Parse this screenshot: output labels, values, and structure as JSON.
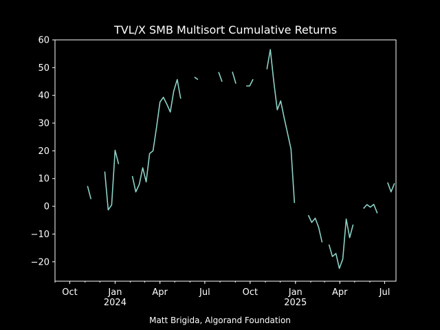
{
  "chart_data": {
    "type": "line",
    "title": "TVL/X SMB Multisort Cumulative Returns",
    "caption": "Matt Brigida, Algorand Foundation",
    "xlabel": "",
    "ylabel": "",
    "x_axis": {
      "type": "date",
      "range": [
        "2023-09-01",
        "2025-07-24"
      ],
      "ticks": [
        {
          "date": "2023-10-01",
          "label": "Oct",
          "year_label": ""
        },
        {
          "date": "2024-01-01",
          "label": "Jan",
          "year_label": "2024"
        },
        {
          "date": "2024-04-01",
          "label": "Apr",
          "year_label": ""
        },
        {
          "date": "2024-07-01",
          "label": "Jul",
          "year_label": ""
        },
        {
          "date": "2024-10-01",
          "label": "Oct",
          "year_label": ""
        },
        {
          "date": "2025-01-01",
          "label": "Jan",
          "year_label": "2025"
        },
        {
          "date": "2025-04-01",
          "label": "Apr",
          "year_label": ""
        },
        {
          "date": "2025-07-01",
          "label": "Jul",
          "year_label": ""
        }
      ]
    },
    "y_axis": {
      "range": [
        -27,
        60
      ],
      "ticks": [
        60,
        50,
        40,
        30,
        20,
        10,
        0,
        -10,
        -20
      ],
      "tick_labels": [
        "60",
        "50",
        "40",
        "30",
        "20",
        "10",
        "0",
        "−10",
        "−20"
      ]
    },
    "grid": false,
    "line_color": "#8dd3c7",
    "segments": [
      [
        [
          "2023-11-06",
          7.3
        ],
        [
          "2023-11-13",
          2.6
        ]
      ],
      [
        [
          "2023-12-11",
          12.5
        ],
        [
          "2023-12-18",
          -1.3
        ],
        [
          "2023-12-25",
          0.5
        ],
        [
          "2024-01-01",
          20.2
        ],
        [
          "2024-01-08",
          15.2
        ]
      ],
      [
        [
          "2024-02-05",
          10.9
        ],
        [
          "2024-02-12",
          5.2
        ],
        [
          "2024-02-19",
          7.9
        ],
        [
          "2024-02-26",
          13.9
        ],
        [
          "2024-03-04",
          8.8
        ],
        [
          "2024-03-11",
          19.0
        ],
        [
          "2024-03-18",
          20.0
        ],
        [
          "2024-03-25",
          28.5
        ],
        [
          "2024-04-01",
          37.6
        ],
        [
          "2024-04-08",
          39.3
        ],
        [
          "2024-04-15",
          36.8
        ],
        [
          "2024-04-22",
          34.0
        ],
        [
          "2024-04-29",
          41.5
        ],
        [
          "2024-05-06",
          45.7
        ],
        [
          "2024-05-13",
          38.8
        ]
      ],
      [
        [
          "2024-06-10",
          46.6
        ],
        [
          "2024-06-17",
          45.7
        ]
      ],
      [
        [
          "2024-07-29",
          48.4
        ],
        [
          "2024-08-05",
          44.9
        ]
      ],
      [
        [
          "2024-08-26",
          48.5
        ],
        [
          "2024-09-02",
          44.2
        ]
      ],
      [
        [
          "2024-09-23",
          43.4
        ],
        [
          "2024-09-30",
          43.4
        ],
        [
          "2024-10-07",
          45.8
        ]
      ],
      [
        [
          "2024-11-04",
          49.4
        ],
        [
          "2024-11-11",
          56.5
        ],
        [
          "2024-11-18",
          45.0
        ],
        [
          "2024-11-25",
          34.8
        ],
        [
          "2024-12-02",
          38.0
        ],
        [
          "2024-12-09",
          31.9
        ],
        [
          "2024-12-16",
          26.3
        ],
        [
          "2024-12-23",
          20.6
        ],
        [
          "2024-12-30",
          1.2
        ]
      ],
      [
        [
          "2025-01-27",
          -3.2
        ],
        [
          "2025-02-03",
          -5.8
        ],
        [
          "2025-02-10",
          -4.3
        ],
        [
          "2025-02-17",
          -7.6
        ],
        [
          "2025-02-24",
          -13.0
        ]
      ],
      [
        [
          "2025-03-10",
          -13.8
        ],
        [
          "2025-03-17",
          -18.1
        ],
        [
          "2025-03-24",
          -17.0
        ],
        [
          "2025-03-31",
          -22.4
        ],
        [
          "2025-04-07",
          -19.0
        ],
        [
          "2025-04-14",
          -4.6
        ],
        [
          "2025-04-21",
          -11.3
        ],
        [
          "2025-04-28",
          -6.6
        ]
      ],
      [
        [
          "2025-05-19",
          -0.8
        ],
        [
          "2025-05-26",
          0.6
        ],
        [
          "2025-06-02",
          -0.3
        ],
        [
          "2025-06-09",
          0.7
        ],
        [
          "2025-06-16",
          -2.5
        ]
      ],
      [
        [
          "2025-07-07",
          8.6
        ],
        [
          "2025-07-14",
          5.2
        ],
        [
          "2025-07-21",
          8.3
        ]
      ]
    ]
  }
}
